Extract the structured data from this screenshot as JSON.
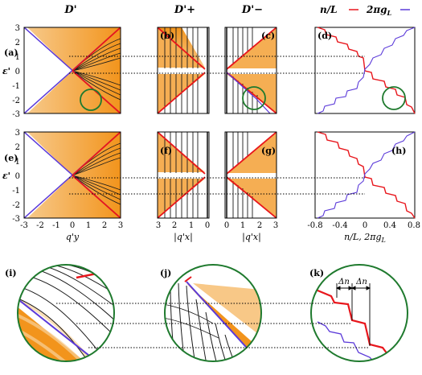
{
  "figure": {
    "column_titles": {
      "d_prime": "D'",
      "d_plus": "D'+",
      "d_minus": "D'−",
      "legend_n": "n/L",
      "legend_g": "2πg",
      "legend_g_sub": "L"
    },
    "panel_letters": [
      "(a)",
      "(b)",
      "(c)",
      "(d)",
      "(e)",
      "(f)",
      "(g)",
      "(h)",
      "(i)",
      "(j)",
      "(k)"
    ],
    "y_axis_label": "ε'",
    "y_ticks": [
      "3",
      "2",
      "1",
      "0",
      "-1",
      "-2",
      "-3"
    ],
    "x_ticks_a": [
      "-3",
      "-2",
      "-1",
      "0",
      "1",
      "2",
      "3"
    ],
    "x_ticks_b": [
      "3",
      "2",
      "1",
      "0"
    ],
    "x_ticks_c": [
      "0",
      "1",
      "2",
      "3"
    ],
    "x_ticks_d": [
      "-0.8",
      "-0.4",
      "0",
      "0.4",
      "0.8"
    ],
    "x_label_a": "q'y",
    "x_label_b": "|q'x|",
    "x_label_c": "|q'x|",
    "x_label_d": "n/L, 2πg",
    "x_label_d_sub": "L",
    "delta_n": "Δn",
    "colors": {
      "orange": "#f29a1e",
      "red": "#e8161c",
      "blue": "#5b3ad9",
      "green": "#1f7a2e",
      "black": "#1a1a1a"
    }
  }
}
